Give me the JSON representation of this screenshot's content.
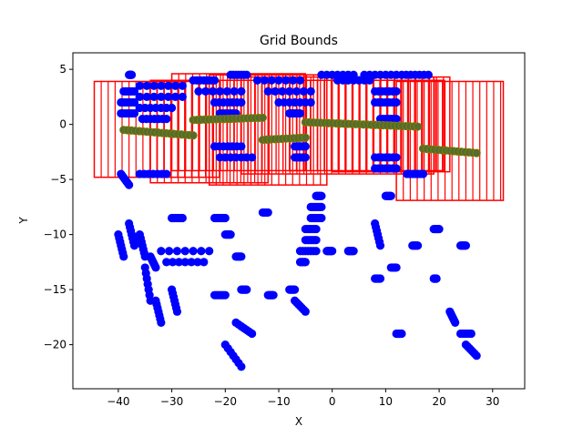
{
  "chart_data": {
    "type": "scatter",
    "title": "Grid Bounds",
    "xlabel": "X",
    "ylabel": "Y",
    "xlim": [
      -48.5,
      36
    ],
    "ylim": [
      -24,
      6.5
    ],
    "xticks": [
      -40,
      -30,
      -20,
      -10,
      0,
      10,
      20,
      30
    ],
    "xtick_labels": [
      "−40",
      "−30",
      "−20",
      "−10",
      "0",
      "10",
      "20",
      "30"
    ],
    "yticks": [
      5,
      0,
      -5,
      -10,
      -15,
      -20
    ],
    "ytick_labels": [
      "5",
      "0",
      "−5",
      "−10",
      "−15",
      "−20"
    ],
    "colors": {
      "points": "#0000ff",
      "trajectory": "#556b2f",
      "trajectory_edge": "#808000",
      "grid_box": "#ff0000"
    },
    "series": [
      {
        "name": "points",
        "marker": "circle",
        "clusters": [
          {
            "x": [
              -38,
              -37.5
            ],
            "y": [
              4.5,
              4.5
            ]
          },
          {
            "x": [
              -39,
              -37
            ],
            "y": [
              3,
              3
            ]
          },
          {
            "x": [
              -39.5,
              -37
            ],
            "y": [
              2,
              2
            ]
          },
          {
            "x": [
              -39.5,
              -37
            ],
            "y": [
              1,
              1
            ]
          },
          {
            "x": [
              -39.5,
              -38
            ],
            "y": [
              -4.5,
              -5.5
            ]
          },
          {
            "x": [
              -36,
              -28
            ],
            "y": [
              3.5,
              3.5
            ]
          },
          {
            "x": [
              -36,
              -28
            ],
            "y": [
              2.5,
              2.5
            ]
          },
          {
            "x": [
              -36,
              -30
            ],
            "y": [
              1.5,
              1.5
            ]
          },
          {
            "x": [
              -35.5,
              -31
            ],
            "y": [
              0.5,
              0.5
            ]
          },
          {
            "x": [
              -36,
              -31
            ],
            "y": [
              -4.5,
              -4.5
            ]
          },
          {
            "x": [
              -26,
              -22
            ],
            "y": [
              4,
              4
            ]
          },
          {
            "x": [
              -25,
              -17
            ],
            "y": [
              3,
              3
            ]
          },
          {
            "x": [
              -22,
              -17
            ],
            "y": [
              2,
              2
            ]
          },
          {
            "x": [
              -21,
              -18
            ],
            "y": [
              1,
              1
            ]
          },
          {
            "x": [
              -22,
              -17
            ],
            "y": [
              -2,
              -2
            ]
          },
          {
            "x": [
              -21,
              -15
            ],
            "y": [
              -3,
              -3
            ]
          },
          {
            "x": [
              -19,
              -16
            ],
            "y": [
              4.5,
              4.5
            ]
          },
          {
            "x": [
              -14,
              -6
            ],
            "y": [
              4,
              4
            ]
          },
          {
            "x": [
              -12,
              -4
            ],
            "y": [
              3,
              3
            ]
          },
          {
            "x": [
              -10,
              -4
            ],
            "y": [
              2,
              2
            ]
          },
          {
            "x": [
              -8,
              -6
            ],
            "y": [
              1,
              1
            ]
          },
          {
            "x": [
              -7,
              -5
            ],
            "y": [
              -2,
              -2
            ]
          },
          {
            "x": [
              -7,
              -5
            ],
            "y": [
              -3,
              -3
            ]
          },
          {
            "x": [
              -2,
              4
            ],
            "y": [
              4.5,
              4.5
            ]
          },
          {
            "x": [
              1,
              7
            ],
            "y": [
              4,
              4
            ]
          },
          {
            "x": [
              6,
              12
            ],
            "y": [
              4.5,
              4.5
            ]
          },
          {
            "x": [
              8,
              12
            ],
            "y": [
              3,
              3
            ]
          },
          {
            "x": [
              8,
              12
            ],
            "y": [
              2,
              2
            ]
          },
          {
            "x": [
              9,
              12
            ],
            "y": [
              0.5,
              0.5
            ]
          },
          {
            "x": [
              8,
              12
            ],
            "y": [
              -3,
              -3
            ]
          },
          {
            "x": [
              8,
              12
            ],
            "y": [
              -4,
              -4
            ]
          },
          {
            "x": [
              13,
              18
            ],
            "y": [
              4.5,
              4.5
            ]
          },
          {
            "x": [
              14,
              17
            ],
            "y": [
              -4.5,
              -4.5
            ]
          },
          {
            "x": [
              -3,
              -2
            ],
            "y": [
              -6.5,
              -6.5
            ]
          },
          {
            "x": [
              -4,
              -2
            ],
            "y": [
              -7.5,
              -7.5
            ]
          },
          {
            "x": [
              -4,
              -2
            ],
            "y": [
              -8.5,
              -8.5
            ]
          },
          {
            "x": [
              -5,
              -3
            ],
            "y": [
              -9.5,
              -9.5
            ]
          },
          {
            "x": [
              -5,
              -3
            ],
            "y": [
              -10.5,
              -10.5
            ]
          },
          {
            "x": [
              -6,
              -3
            ],
            "y": [
              -11.5,
              -11.5
            ]
          },
          {
            "x": [
              -6,
              -5
            ],
            "y": [
              -12.5,
              -12.5
            ]
          },
          {
            "x": [
              -40,
              -39
            ],
            "y": [
              -10,
              -12
            ]
          },
          {
            "x": [
              -38,
              -37
            ],
            "y": [
              -9,
              -11
            ]
          },
          {
            "x": [
              -36,
              -35
            ],
            "y": [
              -10,
              -12
            ]
          },
          {
            "x": [
              -35,
              -34
            ],
            "y": [
              -13,
              -16
            ]
          },
          {
            "x": [
              -34,
              -33
            ],
            "y": [
              -12,
              -13
            ]
          },
          {
            "x": [
              -32,
              -23
            ],
            "y": [
              -11.5,
              -11.5
            ]
          },
          {
            "x": [
              -31,
              -24
            ],
            "y": [
              -12.5,
              -12.5
            ]
          },
          {
            "x": [
              -33,
              -32
            ],
            "y": [
              -16,
              -18
            ]
          },
          {
            "x": [
              -30,
              -29
            ],
            "y": [
              -15,
              -17
            ]
          },
          {
            "x": [
              -30,
              -28
            ],
            "y": [
              -8.5,
              -8.5
            ]
          },
          {
            "x": [
              -22,
              -20
            ],
            "y": [
              -8.5,
              -8.5
            ]
          },
          {
            "x": [
              -20,
              -19
            ],
            "y": [
              -10,
              -10
            ]
          },
          {
            "x": [
              -22,
              -20
            ],
            "y": [
              -15.5,
              -15.5
            ]
          },
          {
            "x": [
              -18,
              -17
            ],
            "y": [
              -12,
              -12
            ]
          },
          {
            "x": [
              -17,
              -16
            ],
            "y": [
              -15,
              -15
            ]
          },
          {
            "x": [
              -13,
              -12
            ],
            "y": [
              -8,
              -8
            ]
          },
          {
            "x": [
              -12,
              -11
            ],
            "y": [
              -15.5,
              -15.5
            ]
          },
          {
            "x": [
              -8,
              -7
            ],
            "y": [
              -15,
              -15
            ]
          },
          {
            "x": [
              -7,
              -5
            ],
            "y": [
              -16,
              -17
            ]
          },
          {
            "x": [
              -18,
              -15
            ],
            "y": [
              -18,
              -19
            ]
          },
          {
            "x": [
              -20,
              -17
            ],
            "y": [
              -20,
              -22
            ]
          },
          {
            "x": [
              -1,
              0
            ],
            "y": [
              -11.5,
              -11.5
            ]
          },
          {
            "x": [
              3,
              4
            ],
            "y": [
              -11.5,
              -11.5
            ]
          },
          {
            "x": [
              8,
              9
            ],
            "y": [
              -9,
              -11
            ]
          },
          {
            "x": [
              8,
              9
            ],
            "y": [
              -14,
              -14
            ]
          },
          {
            "x": [
              11,
              12
            ],
            "y": [
              -13,
              -13
            ]
          },
          {
            "x": [
              10,
              11
            ],
            "y": [
              -6.5,
              -6.5
            ]
          },
          {
            "x": [
              15,
              16
            ],
            "y": [
              -11,
              -11
            ]
          },
          {
            "x": [
              19,
              20
            ],
            "y": [
              -9.5,
              -9.5
            ]
          },
          {
            "x": [
              19,
              19.5
            ],
            "y": [
              -14,
              -14
            ]
          },
          {
            "x": [
              24,
              25
            ],
            "y": [
              -11,
              -11
            ]
          },
          {
            "x": [
              22,
              23
            ],
            "y": [
              -17,
              -18
            ]
          },
          {
            "x": [
              24,
              26
            ],
            "y": [
              -19,
              -19
            ]
          },
          {
            "x": [
              25,
              27
            ],
            "y": [
              -20,
              -21
            ]
          },
          {
            "x": [
              12,
              13
            ],
            "y": [
              -19,
              -19
            ]
          }
        ]
      },
      {
        "name": "trajectory",
        "marker": "circle",
        "segments": [
          {
            "x0": -39,
            "y0": -0.5,
            "x1": -26,
            "y1": -1.0
          },
          {
            "x0": -26,
            "y0": 0.4,
            "x1": -13,
            "y1": 0.6
          },
          {
            "x0": -13,
            "y0": -1.4,
            "x1": -5,
            "y1": -1.2
          },
          {
            "x0": -5,
            "y0": 0.2,
            "x1": 16,
            "y1": -0.2
          },
          {
            "x0": 17,
            "y0": -2.2,
            "x1": 27,
            "y1": -2.6
          }
        ]
      },
      {
        "name": "grid_boxes",
        "boxes": [
          {
            "x0": -44.5,
            "x1": -21,
            "y0": -4.8,
            "y1": 3.9
          },
          {
            "x0": -34,
            "x1": -12,
            "y0": -5.3,
            "y1": 4.0
          },
          {
            "x0": -30,
            "x1": -5,
            "y0": -4.2,
            "y1": 4.6
          },
          {
            "x0": -23,
            "x1": -1,
            "y0": -5.5,
            "y1": 4.5
          },
          {
            "x0": -17,
            "x1": 19,
            "y0": -4.5,
            "y1": 4.3
          },
          {
            "x0": -8,
            "x1": 21,
            "y0": -4.2,
            "y1": 4.0
          },
          {
            "x0": 0,
            "x1": 22,
            "y0": -4.3,
            "y1": 4.3
          },
          {
            "x0": 12,
            "x1": 32,
            "y0": -6.9,
            "y1": 3.9
          }
        ]
      }
    ]
  }
}
